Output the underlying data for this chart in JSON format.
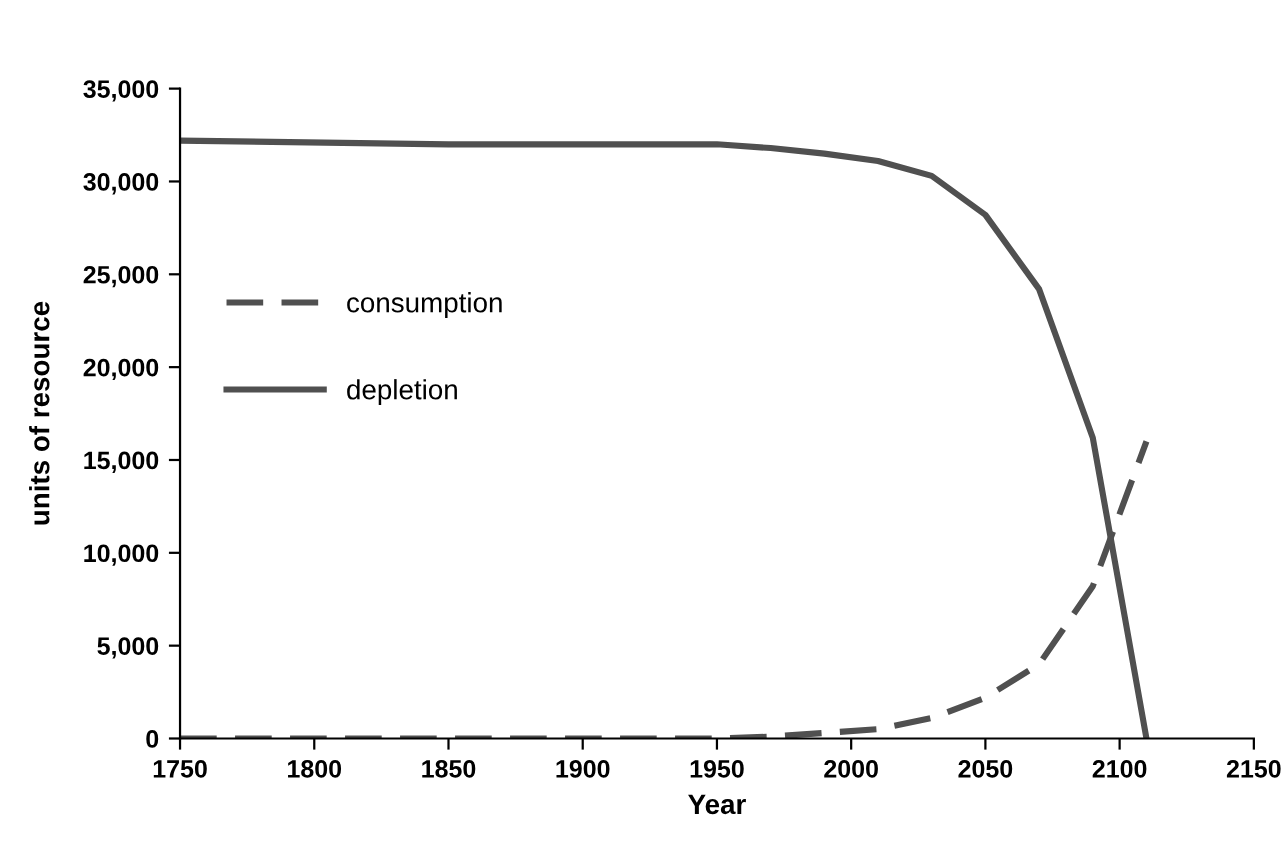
{
  "chart_data": {
    "type": "line",
    "xlabel": "Year",
    "ylabel": "units of resource",
    "x": [
      1750,
      1850,
      1950,
      1970,
      1990,
      2010,
      2030,
      2050,
      2070,
      2090,
      2110
    ],
    "series": [
      {
        "name": "consumption",
        "color": "#505050",
        "line_style": "dashed",
        "values": [
          0,
          0,
          0,
          100,
          300,
          500,
          1100,
          2200,
          4000,
          8200,
          16000
        ]
      },
      {
        "name": "depletion",
        "color": "#505050",
        "line_style": "solid",
        "values": [
          32200,
          32000,
          32000,
          31800,
          31500,
          31100,
          30300,
          28200,
          24200,
          16200,
          0
        ]
      }
    ],
    "xlim": [
      1750,
      2150
    ],
    "xticks": [
      1750,
      1800,
      1850,
      1900,
      1950,
      2000,
      2050,
      2100,
      2150
    ],
    "ylim": [
      0,
      35000
    ],
    "yticks": [
      {
        "value": 0,
        "label": "0"
      },
      {
        "value": 5000,
        "label": "5,000"
      },
      {
        "value": 10000,
        "label": "10,000"
      },
      {
        "value": 15000,
        "label": "15,000"
      },
      {
        "value": 20000,
        "label": "20,000"
      },
      {
        "value": 25000,
        "label": "25,000"
      },
      {
        "value": 30000,
        "label": "30,000"
      },
      {
        "value": 35000,
        "label": "35,000"
      }
    ],
    "grid": false,
    "legend": "left",
    "marker": "none"
  }
}
